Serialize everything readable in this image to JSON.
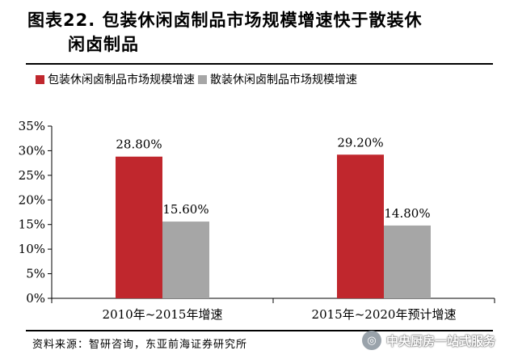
{
  "figure": {
    "title_line1": "图表22. 包装休闲卤制品市场规模增速快于散装休",
    "title_line2": "闲卤制品",
    "source": "资料来源：智研咨询，东亚前海证券研究所",
    "watermark": "中央厨房一站式服务"
  },
  "colors": {
    "series1": "#c0272d",
    "series2": "#a6a6a6"
  },
  "chart_data": {
    "type": "bar",
    "categories": [
      "2010年~2015年增速",
      "2015年~2020年预计增速"
    ],
    "series": [
      {
        "name": "包装休闲卤制品市场规模增速",
        "values": [
          28.8,
          29.2
        ],
        "labels": [
          "28.80%",
          "29.20%"
        ]
      },
      {
        "name": "散装休闲卤制品市场规模增速",
        "values": [
          15.6,
          14.8
        ],
        "labels": [
          "15.60%",
          "14.80%"
        ]
      }
    ],
    "yticks": [
      "0%",
      "5%",
      "10%",
      "15%",
      "20%",
      "25%",
      "30%",
      "35%"
    ],
    "ylim": [
      0,
      35
    ],
    "grid": false,
    "legend_position": "top-left"
  }
}
